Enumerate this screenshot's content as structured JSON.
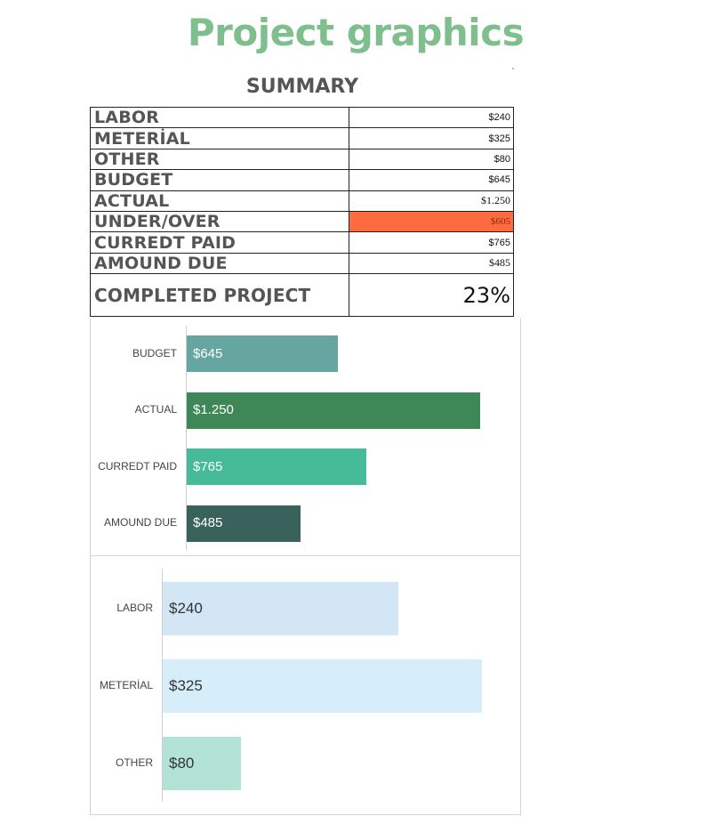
{
  "header": {
    "title": "Project graphics"
  },
  "summary": {
    "title": "SUMMARY",
    "rows": [
      {
        "label": "LABOR",
        "value": "$240"
      },
      {
        "label": "METERİAL",
        "value": "$325"
      },
      {
        "label": "OTHER",
        "value": "$80"
      },
      {
        "label": "BUDGET",
        "value": "$645"
      },
      {
        "label": "ACTUAL",
        "value": "$1.250"
      },
      {
        "label": "UNDER/OVER",
        "value": "$605"
      },
      {
        "label": "CURREDT PAID",
        "value": "$765"
      },
      {
        "label": "AMOUND DUE",
        "value": "$485"
      },
      {
        "label": "COMPLETED PROJECT",
        "value": "23%"
      }
    ],
    "highlight_color": "#ff6b40"
  },
  "chart_data": [
    {
      "type": "bar",
      "orientation": "horizontal",
      "categories": [
        "BUDGET",
        "ACTUAL",
        "CURREDT PAID",
        "AMOUND DUE"
      ],
      "values": [
        645,
        1250,
        765,
        485
      ],
      "data_labels": [
        "$645",
        "$1.250",
        "$765",
        "$485"
      ],
      "colors": [
        "#66a6a0",
        "#3e8857",
        "#46bb98",
        "#3a625c"
      ],
      "xlim": [
        0,
        1300
      ],
      "grid": false
    },
    {
      "type": "bar",
      "orientation": "horizontal",
      "categories": [
        "LABOR",
        "METERİAL",
        "OTHER"
      ],
      "values": [
        240,
        325,
        80
      ],
      "data_labels": [
        "$240",
        "$325",
        "$80"
      ],
      "colors": [
        "#d2e6f5",
        "#d5eefa",
        "#b3e3d4"
      ],
      "xlim": [
        0,
        330
      ],
      "grid": false
    }
  ]
}
